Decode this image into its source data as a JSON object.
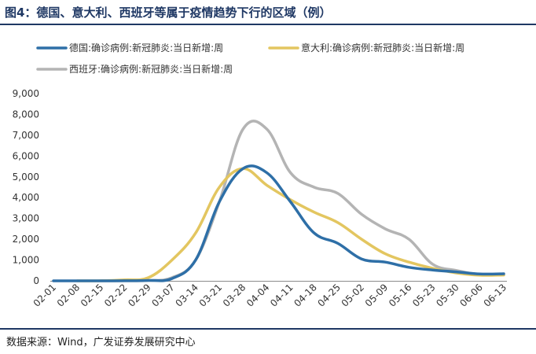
{
  "header": {
    "title": "图4：德国、意大利、西班牙等属于疫情趋势下行的区域（例）"
  },
  "footer": {
    "source": "数据来源：Wind，广发证券发展研究中心"
  },
  "chart_data": {
    "type": "line",
    "x": [
      "02-01",
      "02-08",
      "02-15",
      "02-22",
      "02-29",
      "03-07",
      "03-14",
      "03-21",
      "03-28",
      "04-04",
      "04-11",
      "04-18",
      "04-25",
      "05-02",
      "05-09",
      "05-16",
      "05-23",
      "05-30",
      "06-06",
      "06-13"
    ],
    "yticks": [
      "0",
      "1,000",
      "2,000",
      "3,000",
      "4,000",
      "5,000",
      "6,000",
      "7,000",
      "8,000",
      "9,000"
    ],
    "ylim": [
      0,
      9000
    ],
    "grid": false,
    "legend": "top",
    "series": [
      {
        "name": "德国:确诊病例:新冠肺炎:当日新增:周",
        "color": "#2e6fa7",
        "values": [
          0,
          0,
          0,
          5,
          20,
          110,
          1000,
          3800,
          5400,
          5200,
          3800,
          2300,
          1800,
          1050,
          900,
          650,
          520,
          430,
          330,
          340
        ]
      },
      {
        "name": "意大利:确诊病例:新冠肺炎:当日新增:周",
        "color": "#e3c660",
        "values": [
          null,
          0,
          2,
          50,
          150,
          1000,
          2300,
          4500,
          5400,
          4600,
          3900,
          3300,
          2800,
          2000,
          1300,
          900,
          600,
          380,
          270,
          280
        ]
      },
      {
        "name": "西班牙:确诊病例:新冠肺炎:当日新增:周",
        "color": "#b4b4b4",
        "values": [
          null,
          null,
          0,
          5,
          20,
          150,
          1000,
          3800,
          7300,
          7300,
          5200,
          4500,
          4200,
          3200,
          2500,
          2000,
          800,
          500,
          300,
          300
        ]
      }
    ]
  }
}
